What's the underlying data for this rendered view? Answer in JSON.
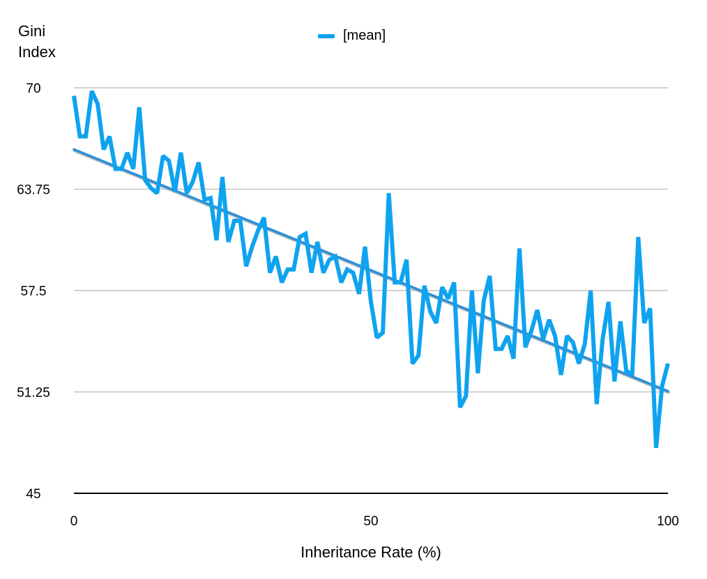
{
  "chart_data": {
    "type": "line",
    "ylabel_line1": "Gini",
    "ylabel_line2": "Index",
    "xlabel": "Inheritance Rate (%)",
    "legend": "[mean]",
    "colors": {
      "series": "#0fa3ef",
      "trend": "#2a8fd8"
    },
    "xlim": [
      0,
      100
    ],
    "ylim": [
      45,
      70
    ],
    "xticks": [
      "0",
      "50",
      "100"
    ],
    "yticks": [
      "70",
      "63.75",
      "57.5",
      "51.25",
      "45"
    ],
    "yticks_values": [
      70,
      63.75,
      57.5,
      51.25,
      45
    ],
    "xticks_values": [
      0,
      50,
      100
    ],
    "trend": {
      "x": [
        0,
        100
      ],
      "y": [
        66.2,
        51.3
      ]
    },
    "series": [
      {
        "name": "[mean]",
        "x": [
          0,
          1,
          2,
          3,
          4,
          5,
          6,
          7,
          8,
          9,
          10,
          11,
          12,
          13,
          14,
          15,
          16,
          17,
          18,
          19,
          20,
          21,
          22,
          23,
          24,
          25,
          26,
          27,
          28,
          29,
          30,
          31,
          32,
          33,
          34,
          35,
          36,
          37,
          38,
          39,
          40,
          41,
          42,
          43,
          44,
          45,
          46,
          47,
          48,
          49,
          50,
          51,
          52,
          53,
          54,
          55,
          56,
          57,
          58,
          59,
          60,
          61,
          62,
          63,
          64,
          65,
          66,
          67,
          68,
          69,
          70,
          71,
          72,
          73,
          74,
          75,
          76,
          77,
          78,
          79,
          80,
          81,
          82,
          83,
          84,
          85,
          86,
          87,
          88,
          89,
          90,
          91,
          92,
          93,
          94,
          95,
          96,
          97,
          98,
          99,
          100
        ],
        "y": [
          69.5,
          67.0,
          67.0,
          69.8,
          69.0,
          66.2,
          67.0,
          65.0,
          65.0,
          66.0,
          65.0,
          68.8,
          64.3,
          63.8,
          63.5,
          65.8,
          65.5,
          63.6,
          66.0,
          63.5,
          64.2,
          65.4,
          63.1,
          63.2,
          60.6,
          64.5,
          60.5,
          61.8,
          61.8,
          59.0,
          60.2,
          61.2,
          62.0,
          58.6,
          59.6,
          58.0,
          58.8,
          58.8,
          60.8,
          61.0,
          58.6,
          60.5,
          58.6,
          59.4,
          59.6,
          58.0,
          58.8,
          58.6,
          57.3,
          60.2,
          56.8,
          54.6,
          54.9,
          63.5,
          58.0,
          58.0,
          59.4,
          53.0,
          53.5,
          57.8,
          56.2,
          55.5,
          57.7,
          57.0,
          58.0,
          50.3,
          51.0,
          57.5,
          52.4,
          56.9,
          58.4,
          53.9,
          53.9,
          54.7,
          53.3,
          60.1,
          54.0,
          55.0,
          56.3,
          54.5,
          55.7,
          54.7,
          52.3,
          54.7,
          54.3,
          53.0,
          54.2,
          57.5,
          50.5,
          54.5,
          56.8,
          51.9,
          55.6,
          52.5,
          52.4,
          60.8,
          55.5,
          56.4,
          47.8,
          51.6,
          53.0
        ]
      }
    ]
  }
}
